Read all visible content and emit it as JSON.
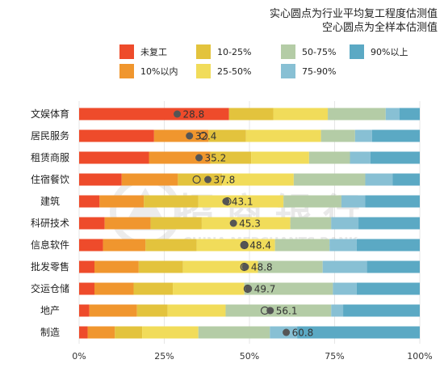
{
  "notes": [
    "实心圆点为行业平均复工程度估测值",
    "空心圆点为全样本估测值"
  ],
  "watermark": {
    "cn": "招商银行",
    "en": "CHINA MERCHANTS BANK"
  },
  "chart_data": {
    "type": "bar",
    "orientation": "horizontal",
    "stacked": true,
    "percent": true,
    "categories": [
      "文娱体育",
      "居民服务",
      "租赁商服",
      "住宿餐饮",
      "建筑",
      "科研技术",
      "信息软件",
      "批发零售",
      "交运仓储",
      "地产",
      "制造"
    ],
    "series": [
      {
        "name": "未复工",
        "color": "#EE4B2B",
        "values": [
          44,
          22,
          20.5,
          12.5,
          6,
          7.5,
          7,
          4.5,
          4.5,
          3,
          2.5
        ]
      },
      {
        "name": "10%以内",
        "color": "#F0962E",
        "values": [
          0,
          16,
          18,
          16.5,
          13,
          13.5,
          12.5,
          13,
          11.5,
          14,
          8
        ]
      },
      {
        "name": "10-25%",
        "color": "#E3C33D",
        "values": [
          13,
          11,
          12,
          13,
          16,
          15,
          15,
          13,
          11.5,
          9,
          8
        ]
      },
      {
        "name": "25-50%",
        "color": "#F1DC5A",
        "values": [
          16,
          22,
          17,
          21,
          25,
          26,
          23,
          22,
          21,
          17,
          16.5
        ]
      },
      {
        "name": "50-75%",
        "color": "#B4CCA6",
        "values": [
          17,
          10,
          12,
          21,
          17,
          12,
          16,
          19,
          26,
          31,
          21
        ]
      },
      {
        "name": "75-90%",
        "color": "#88C0D4",
        "values": [
          4,
          5,
          6,
          8,
          7,
          8,
          8,
          13,
          7,
          3.5,
          8
        ]
      },
      {
        "name": "90%以上",
        "color": "#5BA9C4",
        "values": [
          6,
          14,
          14.5,
          8,
          16,
          18,
          18.5,
          15.5,
          18.5,
          22.5,
          36
        ]
      }
    ],
    "industry_avg": [
      28.8,
      32.4,
      35.2,
      37.8,
      43.1,
      45.3,
      48.4,
      48.8,
      49.7,
      56.1,
      60.8
    ],
    "sample_avg": [
      null,
      36.5,
      null,
      34.5,
      43.5,
      null,
      48.5,
      48.5,
      49.5,
      54.5,
      null
    ],
    "xlim": [
      0,
      100
    ],
    "xticks": [
      "0%",
      "25%",
      "50%",
      "75%",
      "100%"
    ],
    "legend_position": "top",
    "grid": true
  }
}
